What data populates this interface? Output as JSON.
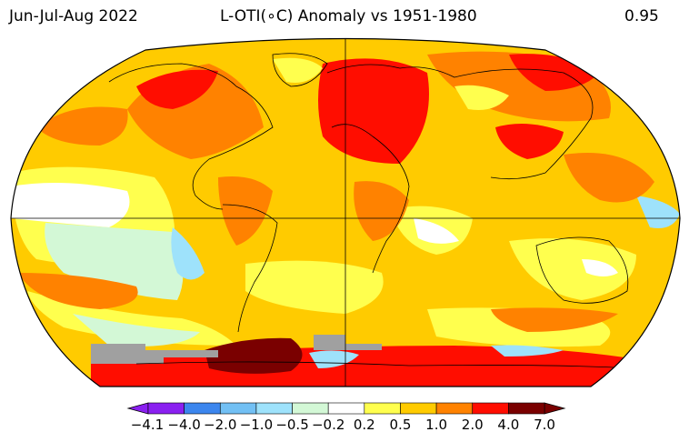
{
  "header": {
    "period": "Jun-Jul-Aug 2022",
    "title": "L-OTI(∘C) Anomaly vs 1951-1980",
    "global_mean": "0.95"
  },
  "colorbar": {
    "tick_labels": [
      "−4.1",
      "−4.0",
      "−2.0",
      "−1.0",
      "−0.5",
      "−0.2",
      "0.2",
      "0.5",
      "1.0",
      "2.0",
      "4.0",
      "7.0"
    ],
    "colors": [
      "#8a20f0",
      "#3c86ee",
      "#72c0f4",
      "#9ee2fb",
      "#d3f8d6",
      "#ffffff",
      "#ffff4e",
      "#ffcb00",
      "#ff8200",
      "#ff0d00",
      "#7a0000"
    ],
    "under_color": "#8a20f0",
    "over_color": "#7a0000"
  },
  "map": {
    "projection": "Robinson",
    "no_data_color": "#a0a0a0",
    "background_class": "#ffcb00"
  }
}
